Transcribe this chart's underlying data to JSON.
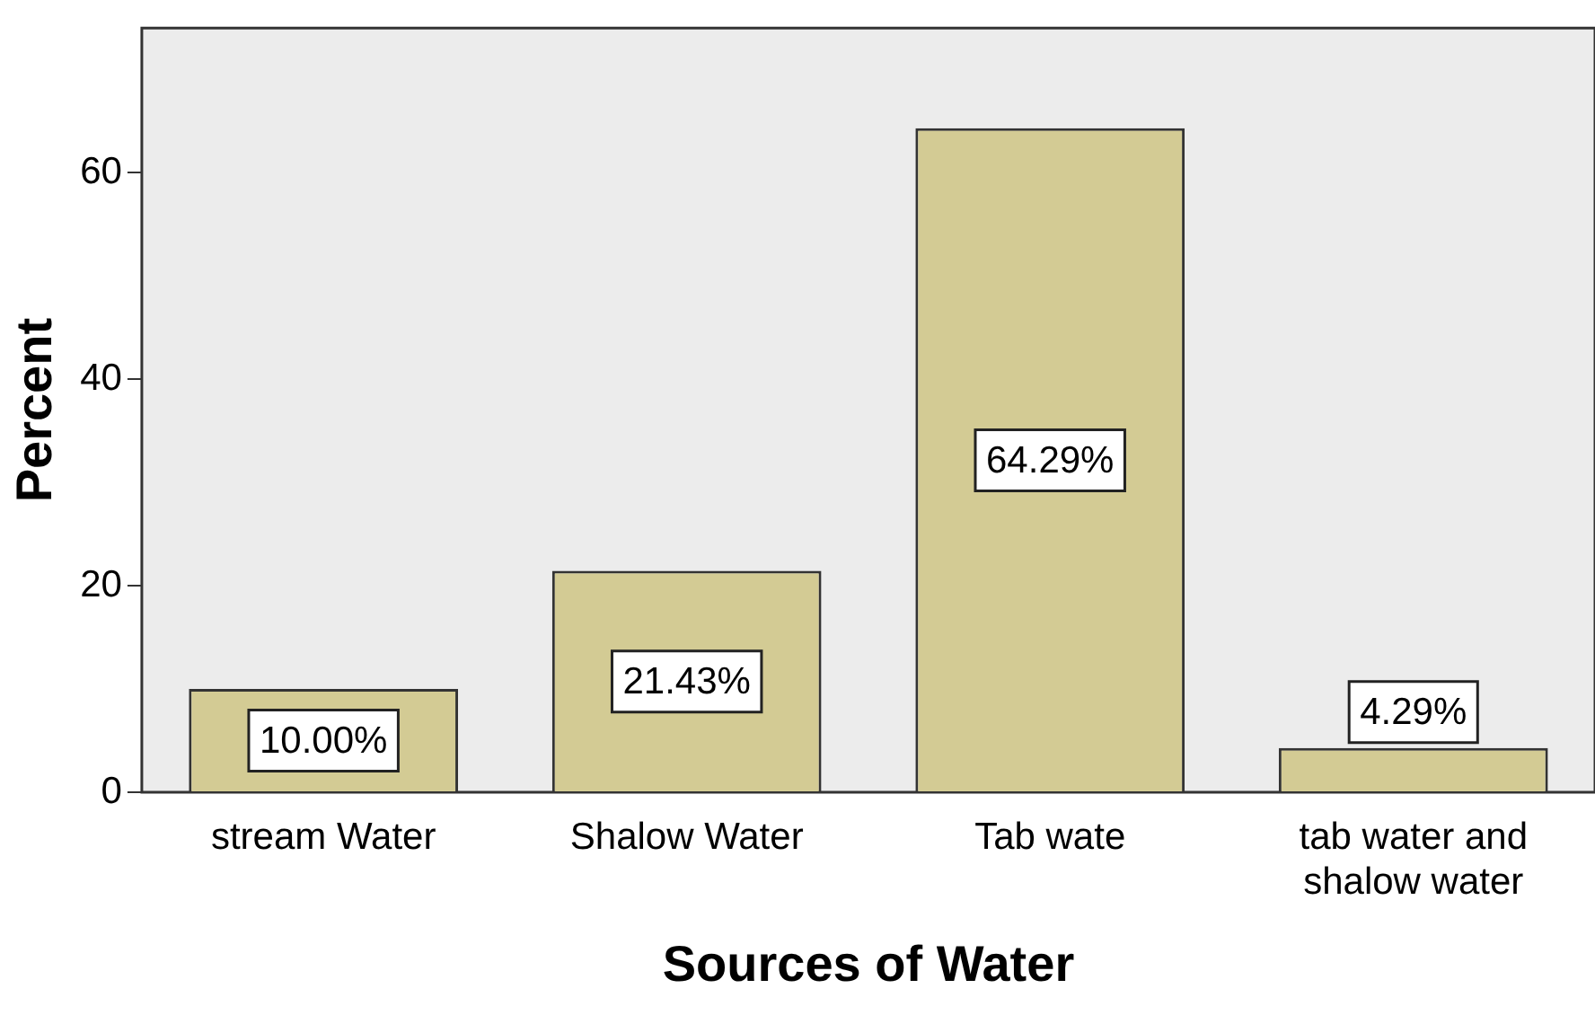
{
  "chart_data": {
    "type": "bar",
    "xlabel": "Sources of Water",
    "ylabel": "Percent",
    "categories": [
      "stream Water",
      "Shalow Water",
      "Tab wate",
      "tab water and shalow water"
    ],
    "values": [
      10.0,
      21.43,
      64.29,
      4.29
    ],
    "color": "#d3cb94",
    "value_labels": [
      "10.00%",
      "21.43%",
      "64.29%",
      "4.29%"
    ],
    "ylim": [
      0,
      74
    ],
    "yticks": [
      0,
      20,
      40,
      60
    ],
    "grid": false,
    "legend": false
  }
}
